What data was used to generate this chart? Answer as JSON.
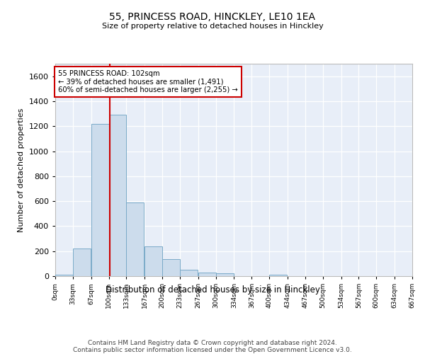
{
  "title": "55, PRINCESS ROAD, HINCKLEY, LE10 1EA",
  "subtitle": "Size of property relative to detached houses in Hinckley",
  "xlabel": "Distribution of detached houses by size in Hinckley",
  "ylabel": "Number of detached properties",
  "bar_color": "#ccdcec",
  "bar_edgecolor": "#7aaac8",
  "annotation_line_color": "#cc0000",
  "annotation_box_color": "#cc0000",
  "annotation_text": "55 PRINCESS ROAD: 102sqm\n← 39% of detached houses are smaller (1,491)\n60% of semi-detached houses are larger (2,255) →",
  "property_size": 102,
  "bin_edges": [
    0,
    33,
    67,
    100,
    133,
    167,
    200,
    233,
    267,
    300,
    334,
    367,
    400,
    434,
    467,
    500,
    534,
    567,
    600,
    634,
    667
  ],
  "bar_heights": [
    10,
    220,
    1220,
    1290,
    590,
    240,
    135,
    50,
    30,
    25,
    0,
    0,
    14,
    0,
    0,
    0,
    0,
    0,
    0,
    0
  ],
  "ylim": [
    0,
    1700
  ],
  "yticks": [
    0,
    200,
    400,
    600,
    800,
    1000,
    1200,
    1400,
    1600
  ],
  "background_color": "#e8eef8",
  "grid_color": "#ffffff",
  "footer_text": "Contains HM Land Registry data © Crown copyright and database right 2024.\nContains public sector information licensed under the Open Government Licence v3.0.",
  "tick_labels": [
    "0sqm",
    "33sqm",
    "67sqm",
    "100sqm",
    "133sqm",
    "167sqm",
    "200sqm",
    "233sqm",
    "267sqm",
    "300sqm",
    "334sqm",
    "367sqm",
    "400sqm",
    "434sqm",
    "467sqm",
    "500sqm",
    "534sqm",
    "567sqm",
    "600sqm",
    "634sqm",
    "667sqm"
  ]
}
